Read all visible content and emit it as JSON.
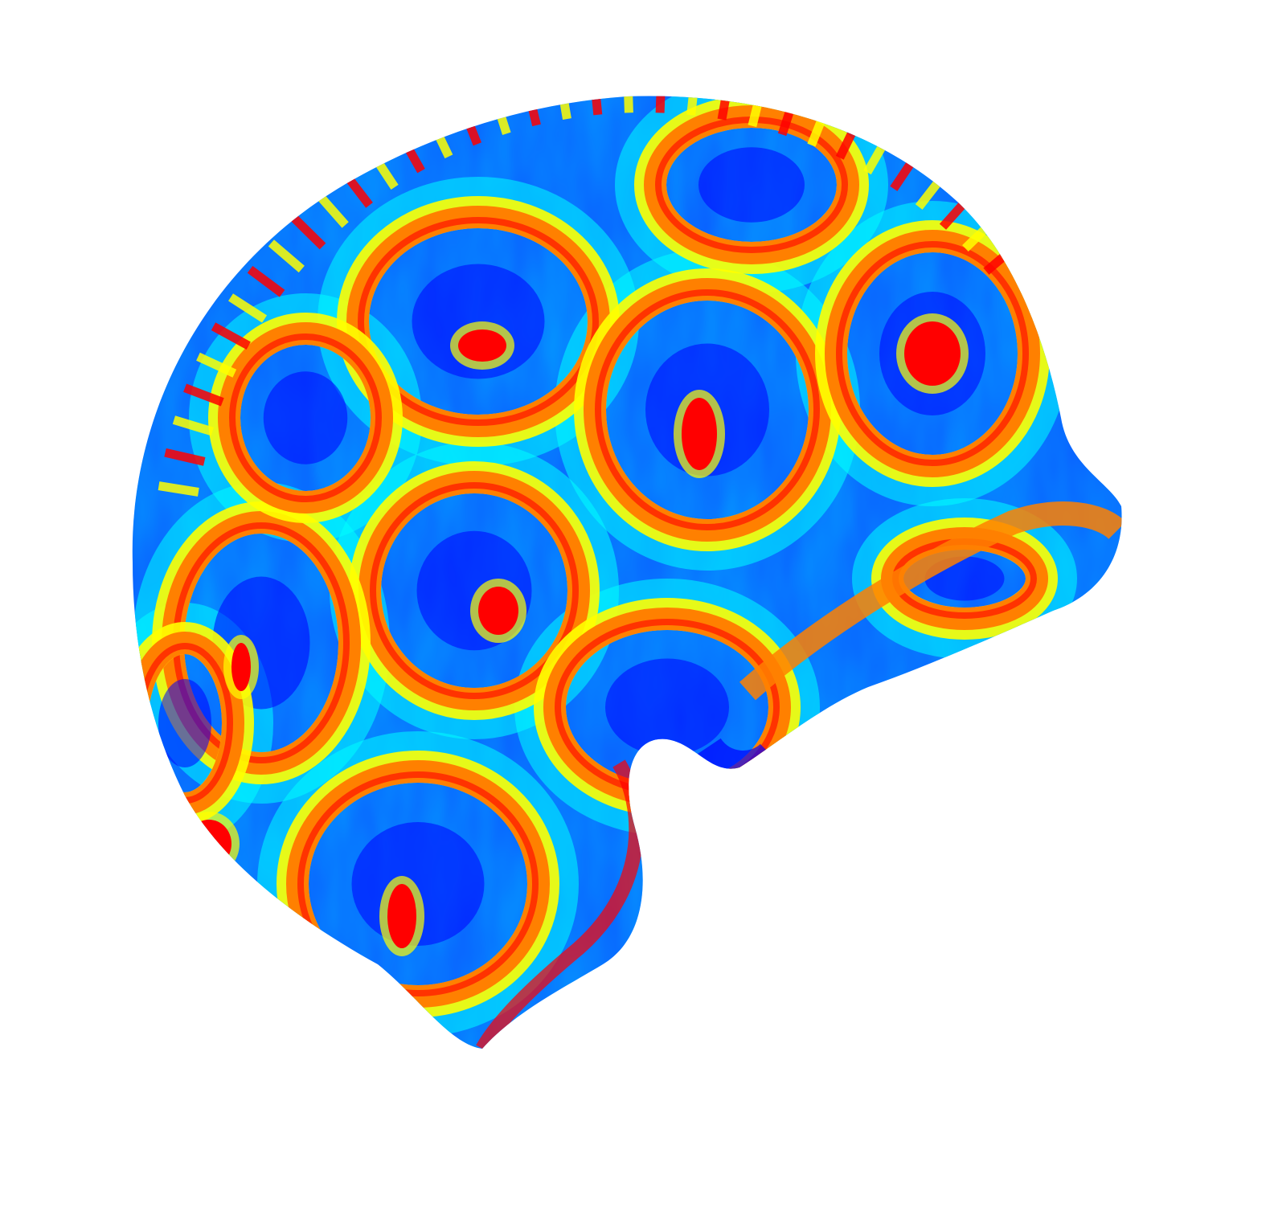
{
  "figure": {
    "colormap": "jet",
    "background_color": "#ffffff",
    "palette": [
      "#00007f",
      "#0000ff",
      "#0080ff",
      "#00ffff",
      "#80ff80",
      "#ffff00",
      "#ff8000",
      "#ff0000",
      "#7f0000"
    ],
    "pattern": "rings"
  }
}
